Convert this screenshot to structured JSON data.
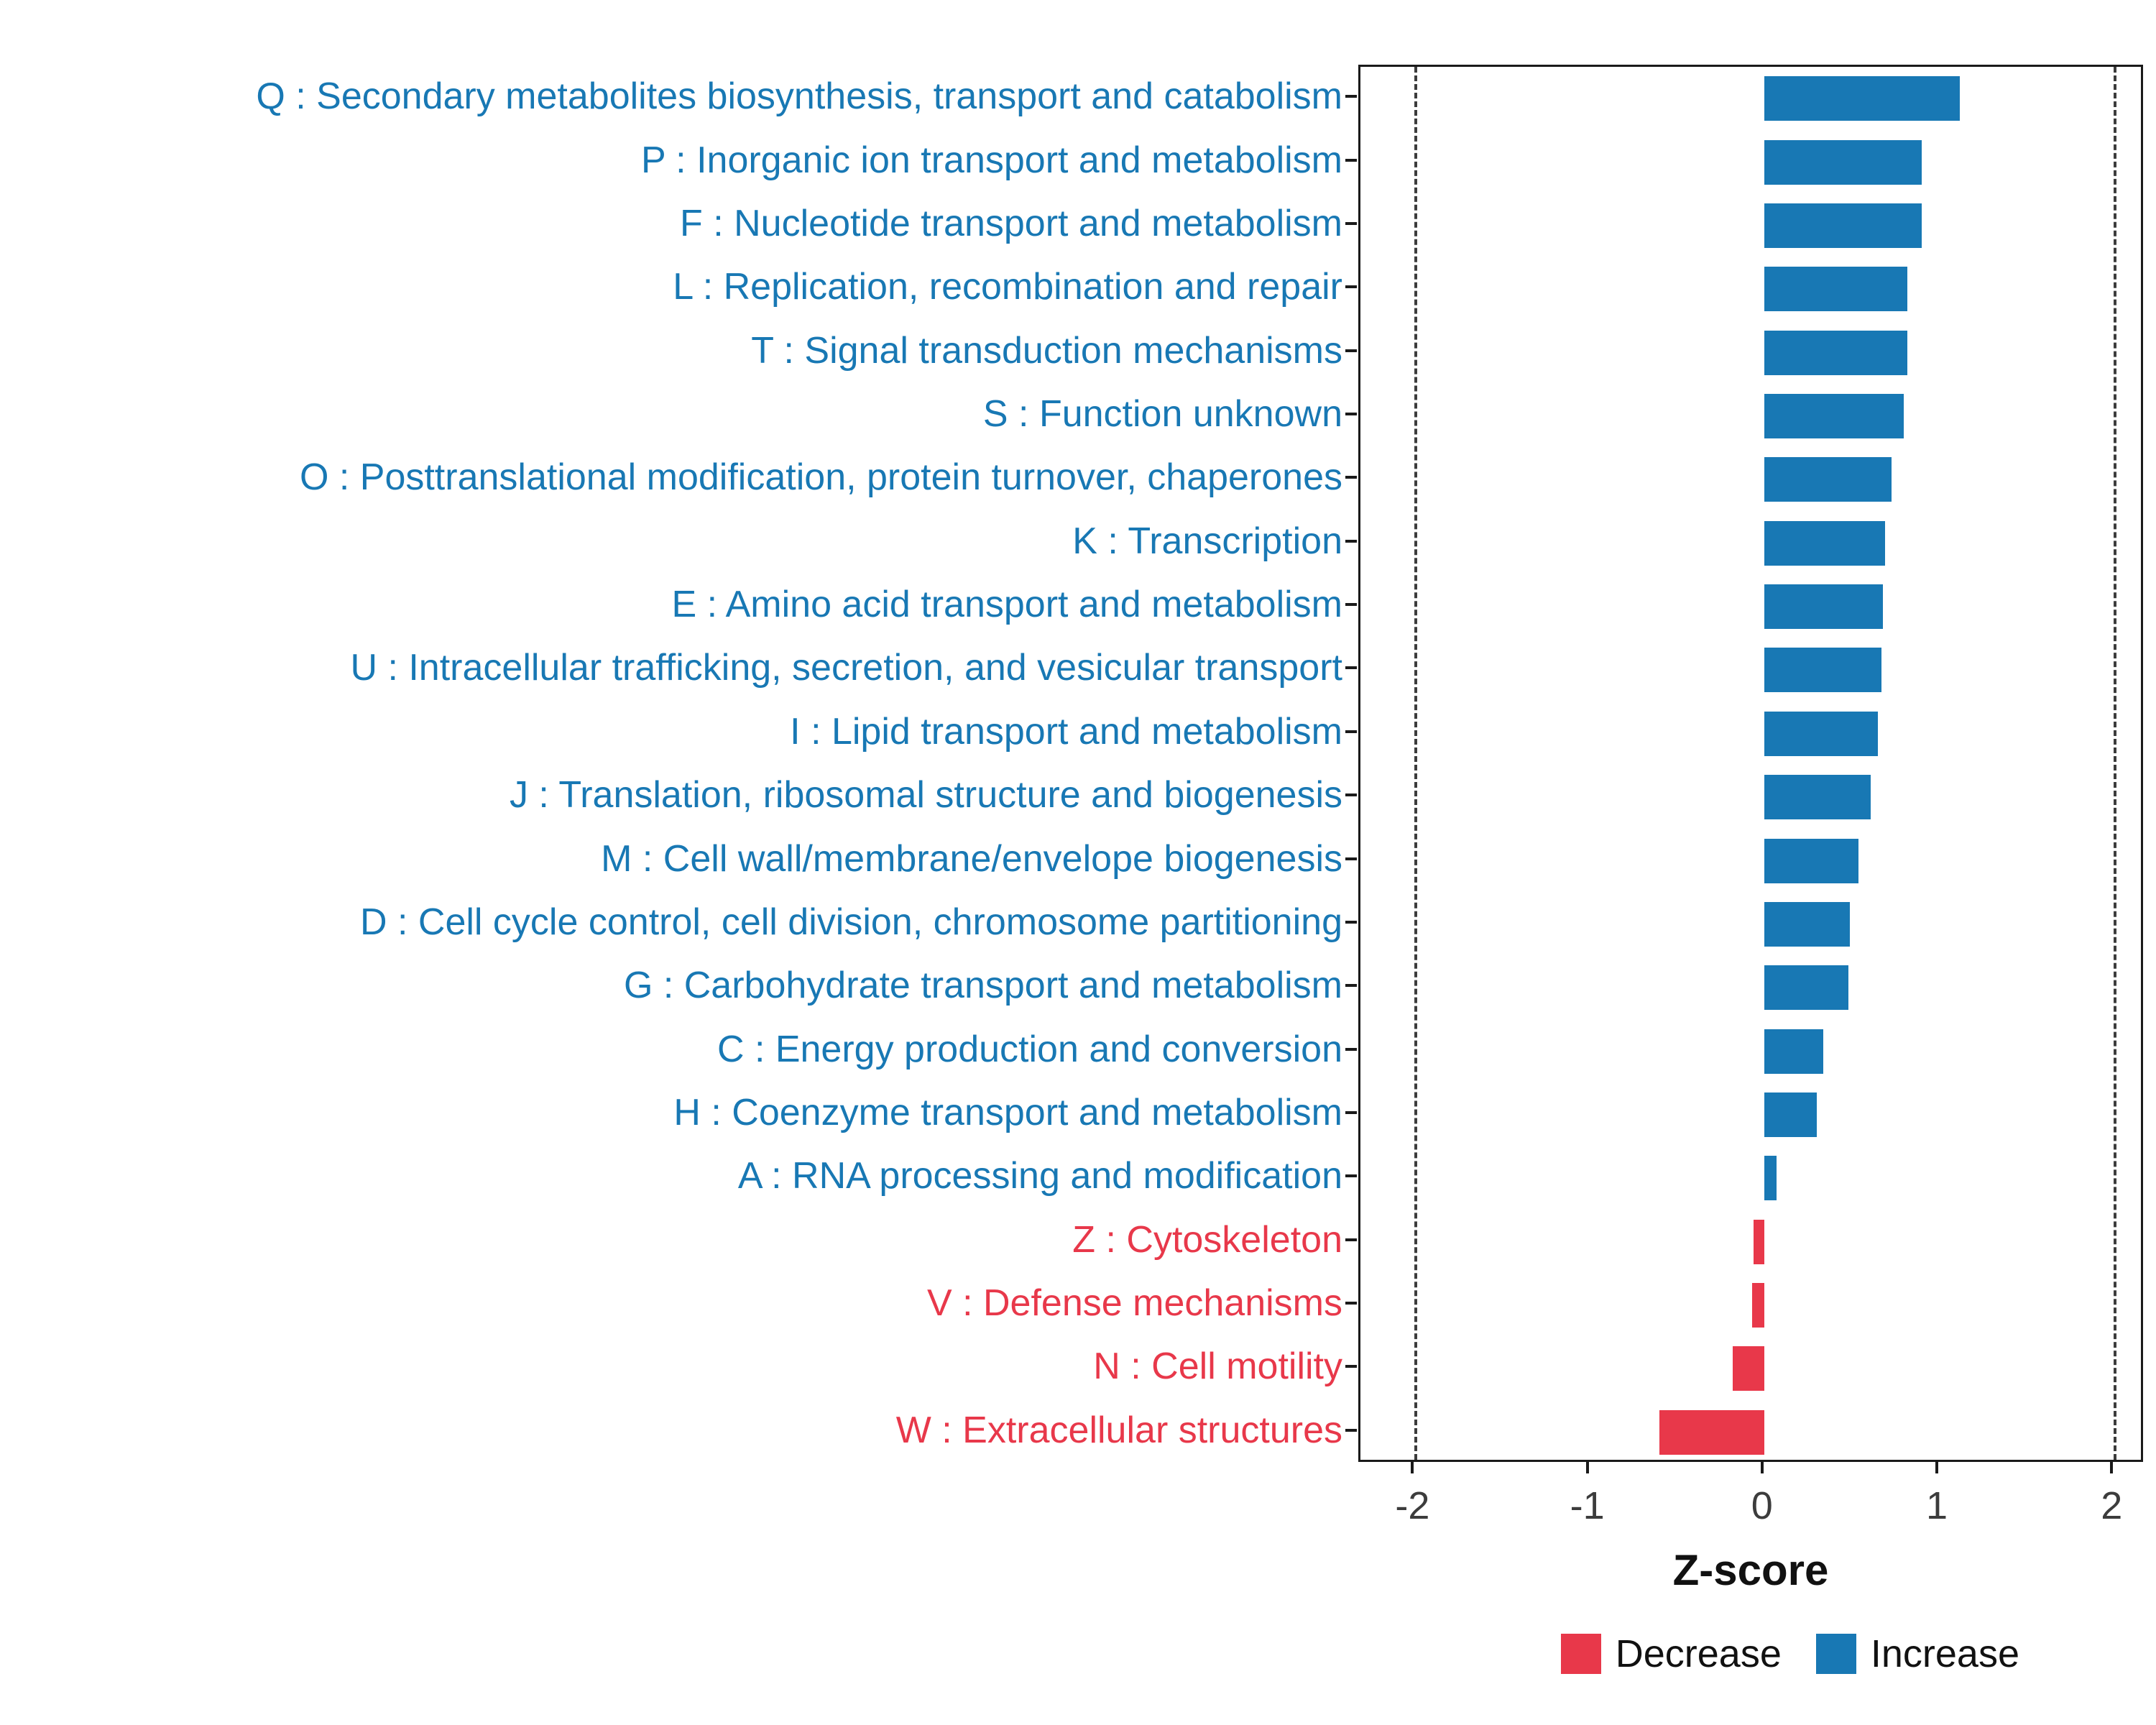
{
  "chart_data": {
    "type": "bar",
    "orientation": "horizontal",
    "title": "",
    "xlabel": "Z-score",
    "ylabel": "",
    "x_range": [
      -2.31,
      2.18
    ],
    "x_ticks": [
      -2,
      -1,
      0,
      1,
      2
    ],
    "reference_lines": [
      -2,
      2
    ],
    "grid": false,
    "colors": {
      "increase": "#1878B4",
      "decrease": "#E8384A"
    },
    "legend": {
      "position": "bottom-right",
      "entries": [
        {
          "label": "Decrease",
          "group": "decrease",
          "color": "#E8384A"
        },
        {
          "label": "Increase",
          "group": "increase",
          "color": "#1878B4"
        }
      ]
    },
    "categories": [
      {
        "code": "Q",
        "label": "Q : Secondary metabolites biosynthesis, transport and catabolism",
        "value": 1.12,
        "group": "increase"
      },
      {
        "code": "P",
        "label": "P : Inorganic ion transport and metabolism",
        "value": 0.9,
        "group": "increase"
      },
      {
        "code": "F",
        "label": "F : Nucleotide transport and metabolism",
        "value": 0.9,
        "group": "increase"
      },
      {
        "code": "L",
        "label": "L : Replication, recombination and repair",
        "value": 0.82,
        "group": "increase"
      },
      {
        "code": "T",
        "label": "T : Signal transduction mechanisms",
        "value": 0.82,
        "group": "increase"
      },
      {
        "code": "S",
        "label": "S : Function unknown",
        "value": 0.8,
        "group": "increase"
      },
      {
        "code": "O",
        "label": "O : Posttranslational modification, protein turnover, chaperones",
        "value": 0.73,
        "group": "increase"
      },
      {
        "code": "K",
        "label": "K : Transcription",
        "value": 0.69,
        "group": "increase"
      },
      {
        "code": "E",
        "label": "E : Amino acid transport and metabolism",
        "value": 0.68,
        "group": "increase"
      },
      {
        "code": "U",
        "label": "U : Intracellular trafficking, secretion, and vesicular transport",
        "value": 0.67,
        "group": "increase"
      },
      {
        "code": "I",
        "label": "I : Lipid transport and metabolism",
        "value": 0.65,
        "group": "increase"
      },
      {
        "code": "J",
        "label": "J : Translation, ribosomal structure and biogenesis",
        "value": 0.61,
        "group": "increase"
      },
      {
        "code": "M",
        "label": "M : Cell wall/membrane/envelope biogenesis",
        "value": 0.54,
        "group": "increase"
      },
      {
        "code": "D",
        "label": "D : Cell cycle control, cell division, chromosome partitioning",
        "value": 0.49,
        "group": "increase"
      },
      {
        "code": "G",
        "label": "G : Carbohydrate transport and metabolism",
        "value": 0.48,
        "group": "increase"
      },
      {
        "code": "C",
        "label": "C : Energy production and conversion",
        "value": 0.34,
        "group": "increase"
      },
      {
        "code": "H",
        "label": "H : Coenzyme transport and metabolism",
        "value": 0.3,
        "group": "increase"
      },
      {
        "code": "A",
        "label": "A : RNA processing and modification",
        "value": 0.07,
        "group": "increase"
      },
      {
        "code": "Z",
        "label": "Z : Cytoskeleton",
        "value": -0.06,
        "group": "decrease"
      },
      {
        "code": "V",
        "label": "V : Defense mechanisms",
        "value": -0.07,
        "group": "decrease"
      },
      {
        "code": "N",
        "label": "N : Cell motility",
        "value": -0.18,
        "group": "decrease"
      },
      {
        "code": "W",
        "label": "W : Extracellular structures",
        "value": -0.6,
        "group": "decrease"
      }
    ]
  }
}
